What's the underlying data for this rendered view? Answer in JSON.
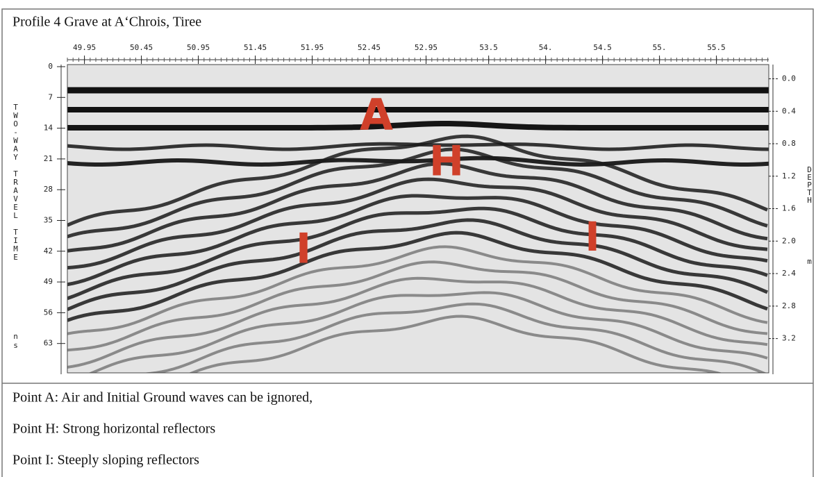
{
  "title": "Profile 4 Grave at A‘Chrois, Tiree",
  "chart_data": {
    "type": "radargram",
    "xlim": [
      49.8,
      55.96
    ],
    "xticks": [
      49.95,
      50.45,
      50.95,
      51.45,
      51.95,
      52.45,
      52.95,
      53.5,
      {
        "value": 54,
        "label": "54."
      },
      54.5,
      {
        "value": 55,
        "label": "55."
      },
      55.5
    ],
    "ylim": [
      0,
      70
    ],
    "yticks": [
      0,
      7,
      14,
      21,
      28,
      35,
      42,
      49,
      56,
      63
    ],
    "ylabel": "TWO-WAY TRAVEL TIME",
    "yunit": "ns",
    "y2lim": [
      -0.15,
      3.64
    ],
    "y2ticks": [
      {
        "value": 0,
        "label": "0.0"
      },
      0.4,
      0.8,
      1.2,
      1.6,
      {
        "value": 2,
        "label": "2.0"
      },
      2.4,
      2.8,
      3.2
    ],
    "y2label": "DEPTH",
    "y2unit": "m",
    "annotations": [
      "A",
      "H",
      "I",
      "I"
    ],
    "annotation_color": "#d0402a"
  },
  "notes": [
    "Point A: Air and Initial Ground waves can be ignored,",
    "Point H: Strong horizontal reflectors",
    "Point I: Steeply sloping reflectors"
  ]
}
